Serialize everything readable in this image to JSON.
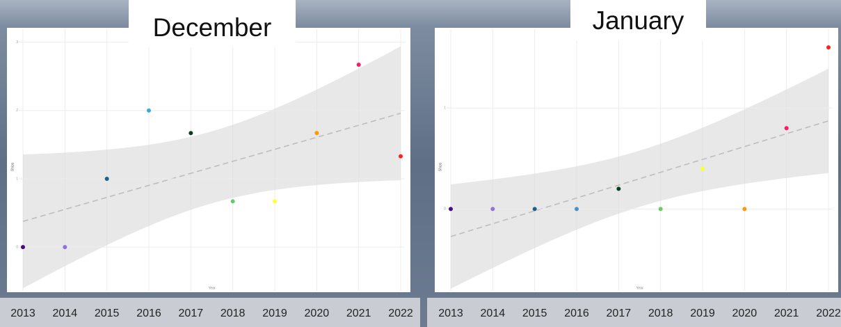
{
  "chart_data": [
    {
      "type": "scatter",
      "title": "December",
      "x_label": "Year",
      "y_label": "Ships",
      "x": [
        2013,
        2014,
        2015,
        2016,
        2017,
        2018,
        2019,
        2020,
        2021,
        2022
      ],
      "values": [
        0,
        0,
        1,
        2,
        1.67,
        0.67,
        0.67,
        1.67,
        2.67,
        1.33
      ],
      "colors": [
        "#4b0a82",
        "#9370db",
        "#1f5f8b",
        "#3fa9d6",
        "#0b3d20",
        "#66cc66",
        "#ffff33",
        "#ff9900",
        "#ff1a66",
        "#ff2020"
      ],
      "xlim": [
        2013,
        2022
      ],
      "xticks": [
        2013,
        2014,
        2015,
        2016,
        2017,
        2018,
        2019,
        2020,
        2021,
        2022
      ],
      "ylim": [
        -0.64,
        3.19
      ],
      "yticks": [
        0,
        1,
        2,
        3
      ],
      "grid": true,
      "trend": true
    },
    {
      "type": "scatter",
      "title": "January",
      "x_label": "Year",
      "y_label": "Ships",
      "x": [
        2013,
        2014,
        2015,
        2016,
        2017,
        2018,
        2019,
        2020,
        2021,
        2022
      ],
      "values": [
        0,
        0,
        0,
        0,
        0.2,
        0,
        0.4,
        0,
        0.8,
        1.6
      ],
      "colors": [
        "#4b0a82",
        "#9370db",
        "#1f5f8b",
        "#4a90c8",
        "#0b3d20",
        "#66cc66",
        "#ffff33",
        "#ff9900",
        "#ff1a66",
        "#ff2020"
      ],
      "xlim": [
        2013,
        2022
      ],
      "xticks": [
        2013,
        2014,
        2015,
        2016,
        2017,
        2018,
        2019,
        2020,
        2021,
        2022
      ],
      "ylim": [
        -0.81,
        1.78
      ],
      "yticks": [
        0,
        1
      ],
      "grid": true,
      "trend": true
    }
  ]
}
